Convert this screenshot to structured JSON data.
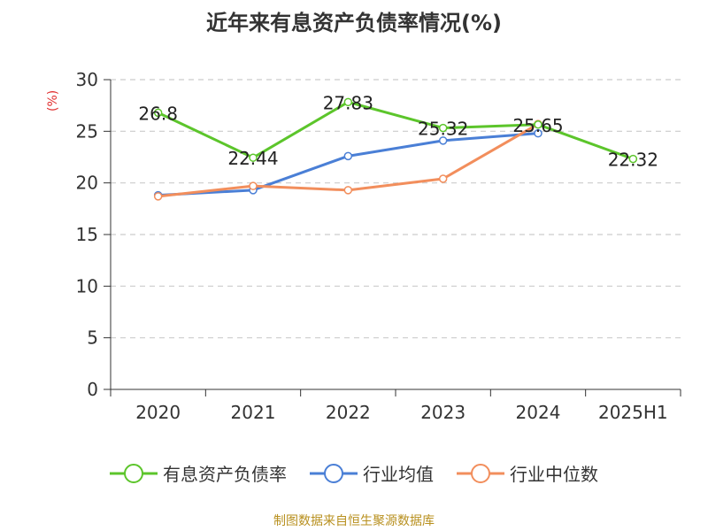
{
  "title": "近年来有息资产负债率情况(%)",
  "unit_label": "(%)",
  "source": "制图数据来自恒生聚源数据库",
  "chart_data": {
    "type": "line",
    "categories": [
      "2020",
      "2021",
      "2022",
      "2023",
      "2024",
      "2025H1"
    ],
    "ylim": [
      0,
      30
    ],
    "yticks": [
      0,
      5,
      10,
      15,
      20,
      25,
      30
    ],
    "grid": true,
    "legend_position": "bottom",
    "series": [
      {
        "name": "有息资产负债率",
        "color": "#5cc52b",
        "values": [
          26.8,
          22.44,
          27.83,
          25.32,
          25.65,
          22.32
        ],
        "labels": [
          "26.8",
          "22.44",
          "27.83",
          "25.32",
          "25.65",
          "22.32"
        ]
      },
      {
        "name": "行业均值",
        "color": "#4a7fd6",
        "values": [
          18.8,
          19.3,
          22.6,
          24.1,
          24.8,
          null
        ]
      },
      {
        "name": "行业中位数",
        "color": "#f28e5c",
        "values": [
          18.7,
          19.7,
          19.3,
          20.4,
          25.7,
          null
        ]
      }
    ]
  }
}
